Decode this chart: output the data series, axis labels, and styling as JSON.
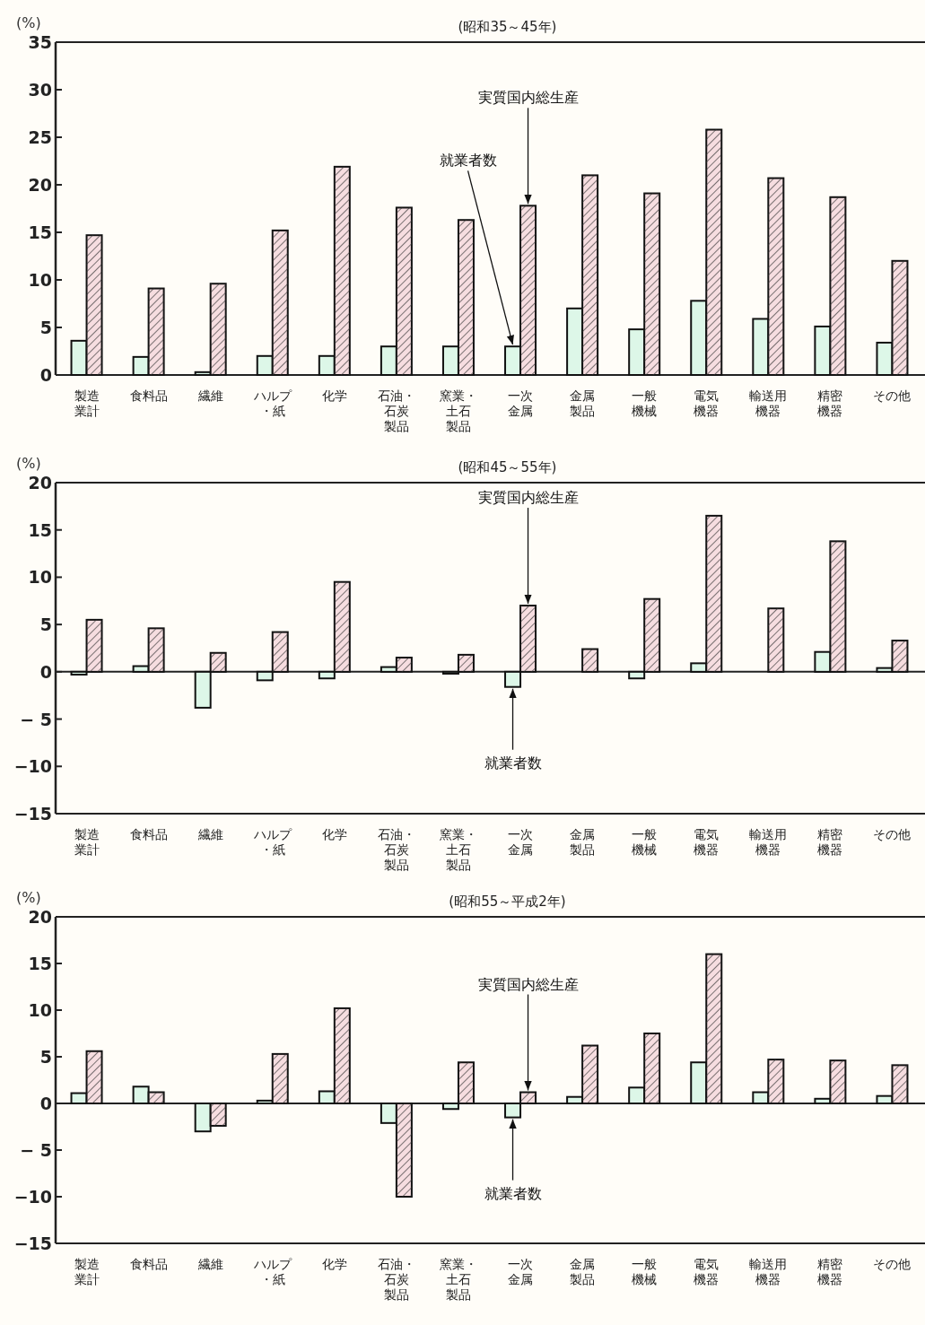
{
  "chart_data": [
    {
      "type": "bar",
      "title": "(昭和35～45年)",
      "ylabel": "(%)",
      "categories": [
        "製造業計",
        "食料品",
        "繊維",
        "ハルプ・紙",
        "化学",
        "石油・石炭製品",
        "窯業・土石製品",
        "一次金属",
        "金属製品",
        "一般機械",
        "電気機器",
        "輸送用機器",
        "精密機器",
        "その他"
      ],
      "series": [
        {
          "color": "#ddf7e8",
          "values": [
            3.6,
            1.9,
            0.3,
            2.0,
            2.0,
            3.0,
            3.0,
            3.0,
            7.0,
            4.8,
            7.8,
            5.9,
            5.1,
            3.4
          ]
        },
        {
          "color": "#f6dde0",
          "values": [
            14.7,
            9.1,
            9.6,
            15.2,
            21.9,
            17.6,
            16.3,
            17.8,
            21.0,
            19.1,
            25.8,
            20.7,
            18.7,
            12.0
          ]
        }
      ],
      "ylim": [
        0,
        35
      ],
      "yticks": [
        0,
        5,
        10,
        15,
        20,
        25,
        30,
        35
      ],
      "grid": false,
      "annotations": [
        {
          "text": "就業者数",
          "x": "一次金属",
          "y": 3.0
        },
        {
          "text": "実質国内総生産",
          "x": "一次金属",
          "y": 17.8
        }
      ]
    },
    {
      "type": "bar",
      "title": "(昭和45～55年)",
      "ylabel": "(%)",
      "categories": [
        "製造業計",
        "食料品",
        "繊維",
        "ハルプ・紙",
        "化学",
        "石油・石炭製品",
        "窯業・土石製品",
        "一次金属",
        "金属製品",
        "一般機械",
        "電気機器",
        "輸送用機器",
        "精密機器",
        "その他"
      ],
      "series": [
        {
          "color": "#ddf7e8",
          "values": [
            -0.3,
            0.6,
            -3.8,
            -0.9,
            -0.7,
            0.5,
            -0.2,
            -1.6,
            0,
            -0.7,
            0.9,
            0,
            2.1,
            0.4
          ]
        },
        {
          "color": "#f6dde0",
          "values": [
            5.5,
            4.6,
            2.0,
            4.2,
            9.5,
            1.5,
            1.8,
            7.0,
            2.4,
            7.7,
            16.5,
            6.7,
            13.8,
            3.3
          ]
        }
      ],
      "ylim": [
        -15,
        20
      ],
      "yticks": [
        {
          "value": -15,
          "label": "−15"
        },
        {
          "value": -10,
          "label": "−10"
        },
        {
          "value": -5,
          "label": "−  5"
        },
        0,
        5,
        10,
        15,
        20
      ],
      "grid": false,
      "ref_lines": [
        {
          "axis": "y",
          "value": 0,
          "color": "#222222"
        }
      ],
      "annotations": [
        {
          "text": "就業者数",
          "x": "一次金属",
          "y": -1.6
        },
        {
          "text": "実質国内総生産",
          "x": "一次金属",
          "y": 7.0
        }
      ]
    },
    {
      "type": "bar",
      "title": "(昭和55～平成2年)",
      "ylabel": "(%)",
      "categories": [
        "製造業計",
        "食料品",
        "繊維",
        "ハルプ・紙",
        "化学",
        "石油・石炭製品",
        "窯業・土石製品",
        "一次金属",
        "金属製品",
        "一般機械",
        "電気機器",
        "輸送用機器",
        "精密機器",
        "その他"
      ],
      "series": [
        {
          "color": "#ddf7e8",
          "values": [
            1.1,
            1.8,
            -3.0,
            0.3,
            1.3,
            -2.1,
            -0.6,
            -1.5,
            0.7,
            1.7,
            4.4,
            1.2,
            0.5,
            0.8
          ]
        },
        {
          "color": "#f6dde0",
          "values": [
            5.6,
            1.2,
            -2.4,
            5.3,
            10.2,
            -10.0,
            4.4,
            1.2,
            6.2,
            7.5,
            16.0,
            4.7,
            4.6,
            4.1
          ]
        }
      ],
      "ylim": [
        -15,
        20
      ],
      "yticks": [
        {
          "value": -15,
          "label": "−15"
        },
        {
          "value": -10,
          "label": "−10"
        },
        {
          "value": -5,
          "label": "−  5"
        },
        0,
        5,
        10,
        15,
        20
      ],
      "grid": false,
      "ref_lines": [
        {
          "axis": "y",
          "value": 0,
          "color": "#222222"
        }
      ],
      "annotations": [
        {
          "text": "就業者数",
          "x": "一次金属",
          "y": -1.5
        },
        {
          "text": "実質国内総生産",
          "x": "一次金属",
          "y": 1.2
        }
      ]
    }
  ]
}
